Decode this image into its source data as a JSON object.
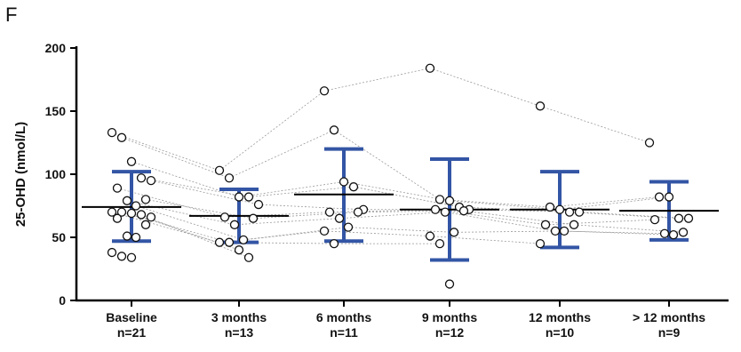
{
  "panel_label": "F",
  "chart_data": {
    "type": "scatter",
    "title": "",
    "ylabel": "25-OHD (nmol/L)",
    "xlabel": "",
    "ylim": [
      0,
      200
    ],
    "yticks": [
      0,
      50,
      100,
      150,
      200
    ],
    "grid": false,
    "categories": [
      {
        "name": "Baseline",
        "n": "n=21"
      },
      {
        "name": "3 months",
        "n": "n=13"
      },
      {
        "name": "6 months",
        "n": "n=11"
      },
      {
        "name": "9 months",
        "n": "n=12"
      },
      {
        "name": "12 months",
        "n": "n=10"
      },
      {
        "name": "> 12 months",
        "n": "n=9"
      }
    ],
    "points": [
      [
        133,
        129,
        110,
        97,
        95,
        89,
        80,
        79,
        75,
        70,
        70,
        69,
        68,
        66,
        65,
        60,
        51,
        50,
        38,
        35,
        34
      ],
      [
        103,
        97,
        82,
        82,
        76,
        66,
        65,
        60,
        48,
        46,
        46,
        40,
        34
      ],
      [
        166,
        135,
        94,
        90,
        72,
        70,
        70,
        65,
        58,
        55,
        45
      ],
      [
        184,
        80,
        79,
        74,
        72,
        72,
        71,
        70,
        54,
        51,
        45,
        13
      ],
      [
        154,
        74,
        72,
        70,
        70,
        60,
        60,
        55,
        55,
        45
      ],
      [
        125,
        82,
        82,
        65,
        65,
        64,
        54,
        53,
        52
      ]
    ],
    "summary": [
      {
        "mean": 74,
        "upper": 102,
        "lower": 47
      },
      {
        "mean": 67,
        "upper": 88,
        "lower": 46
      },
      {
        "mean": 84,
        "upper": 120,
        "lower": 47
      },
      {
        "mean": 72,
        "upper": 112,
        "lower": 32
      },
      {
        "mean": 72,
        "upper": 102,
        "lower": 42
      },
      {
        "mean": 71,
        "upper": 94,
        "lower": 48
      }
    ],
    "colors": {
      "error_bar": "#3355a5",
      "mean_line": "#000000",
      "connector": "#9a9a9a",
      "point_stroke": "#111111",
      "axis": "#000000"
    }
  }
}
